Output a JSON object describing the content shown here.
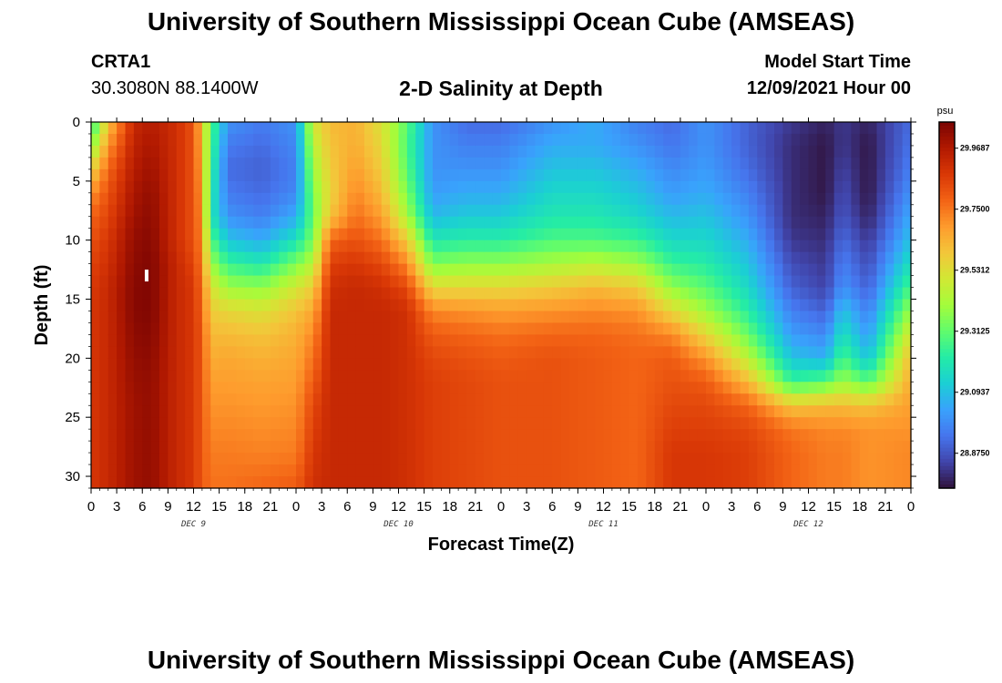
{
  "header": {
    "title": "University of Southern Mississippi Ocean Cube (AMSEAS)",
    "station_id": "CRTA1",
    "station_coords": "30.3080N  88.1400W",
    "subtitle": "2-D Salinity at Depth",
    "model_start_label": "Model Start Time",
    "model_start_value": "12/09/2021 Hour 00"
  },
  "footer": {
    "title": "University of Southern Mississippi Ocean Cube (AMSEAS)"
  },
  "colors": {
    "colormap": [
      "#30123b",
      "#4145ab",
      "#4675ed",
      "#39a2fc",
      "#1bcfd4",
      "#24eca6",
      "#61fc6c",
      "#a4fc3b",
      "#d1e834",
      "#f3c63a",
      "#fe9b2d",
      "#f36315",
      "#d93806",
      "#b11901",
      "#7a0402"
    ]
  },
  "chart_data": {
    "type": "heatmap",
    "title": "2-D Salinity at Depth",
    "xlabel": "Forecast Time(Z)",
    "ylabel": "Depth (ft)",
    "x_range_hours": [
      0,
      96
    ],
    "x_tick_hours": [
      0,
      3,
      6,
      9,
      12,
      15,
      18,
      21,
      24,
      27,
      30,
      33,
      36,
      39,
      42,
      45,
      48,
      51,
      54,
      57,
      60,
      63,
      66,
      69,
      72,
      75,
      78,
      81,
      84,
      87,
      90,
      93,
      96
    ],
    "x_tick_labels": [
      "0",
      "3",
      "6",
      "9",
      "12",
      "15",
      "18",
      "21",
      "0",
      "3",
      "6",
      "9",
      "12",
      "15",
      "18",
      "21",
      "0",
      "3",
      "6",
      "9",
      "12",
      "15",
      "18",
      "21",
      "0",
      "3",
      "6",
      "9",
      "12",
      "15",
      "18",
      "21",
      "0"
    ],
    "day_labels": [
      {
        "text": "DEC 9",
        "hour": 12
      },
      {
        "text": "DEC 10",
        "hour": 36
      },
      {
        "text": "DEC 11",
        "hour": 60
      },
      {
        "text": "DEC 12",
        "hour": 84
      }
    ],
    "y_range_ft": [
      0,
      31
    ],
    "y_ticks": [
      0,
      5,
      10,
      15,
      20,
      25,
      30
    ],
    "y_tick_labels": [
      "0",
      "5",
      "10",
      "15",
      "20",
      "25",
      "30"
    ],
    "colorbar": {
      "unit": "psu",
      "range": [
        28.75,
        30.0625
      ],
      "ticks": [
        29.9687,
        29.75,
        29.5312,
        29.3125,
        29.0937,
        28.875
      ],
      "tick_labels": [
        "29.9687",
        "29.7500",
        "29.5312",
        "29.3125",
        "29.0937",
        "28.8750"
      ]
    },
    "profile_levels_ft": [
      0,
      2,
      4,
      6,
      8,
      10,
      12,
      14,
      16,
      18,
      20,
      22,
      24,
      26,
      28,
      31
    ],
    "profiles": [
      {
        "hour": 0,
        "psu": [
          29.2,
          29.35,
          29.55,
          29.7,
          29.78,
          29.82,
          29.85,
          29.87,
          29.88,
          29.88,
          29.88,
          29.88,
          29.88,
          29.88,
          29.88,
          29.88
        ]
      },
      {
        "hour": 2,
        "psu": [
          29.6,
          29.7,
          29.78,
          29.82,
          29.85,
          29.88,
          29.9,
          29.92,
          29.92,
          29.92,
          29.92,
          29.92,
          29.92,
          29.92,
          29.92,
          29.92
        ]
      },
      {
        "hour": 5,
        "psu": [
          29.92,
          29.94,
          29.96,
          29.98,
          30.0,
          30.02,
          30.03,
          30.04,
          30.04,
          30.03,
          30.02,
          30.01,
          30.0,
          30.0,
          30.0,
          30.0
        ]
      },
      {
        "hour": 7,
        "psu": [
          29.96,
          29.98,
          30.0,
          30.02,
          30.03,
          30.04,
          30.05,
          30.05,
          30.05,
          30.04,
          30.03,
          30.02,
          30.02,
          30.02,
          30.02,
          30.02
        ]
      },
      {
        "hour": 10,
        "psu": [
          29.9,
          29.9,
          29.9,
          29.9,
          29.9,
          29.9,
          29.92,
          29.92,
          29.92,
          29.92,
          29.92,
          29.92,
          29.92,
          29.92,
          29.92,
          29.92
        ]
      },
      {
        "hour": 12,
        "psu": [
          29.82,
          29.82,
          29.82,
          29.82,
          29.82,
          29.82,
          29.85,
          29.88,
          29.88,
          29.88,
          29.88,
          29.88,
          29.88,
          29.88,
          29.88,
          29.88
        ]
      },
      {
        "hour": 13,
        "psu": [
          29.6,
          29.62,
          29.65,
          29.68,
          29.7,
          29.72,
          29.74,
          29.76,
          29.78,
          29.8,
          29.8,
          29.8,
          29.8,
          29.8,
          29.8,
          29.8
        ]
      },
      {
        "hour": 14,
        "psu": [
          29.3,
          29.28,
          29.25,
          29.22,
          29.2,
          29.3,
          29.4,
          29.52,
          29.58,
          29.62,
          29.65,
          29.68,
          29.7,
          29.72,
          29.74,
          29.76
        ]
      },
      {
        "hour": 16,
        "psu": [
          29.0,
          28.95,
          28.92,
          28.95,
          29.0,
          29.1,
          29.25,
          29.4,
          29.55,
          29.62,
          29.66,
          29.68,
          29.7,
          29.72,
          29.74,
          29.76
        ]
      },
      {
        "hour": 20,
        "psu": [
          28.95,
          28.92,
          28.9,
          28.92,
          28.96,
          29.05,
          29.2,
          29.38,
          29.52,
          29.6,
          29.64,
          29.67,
          29.69,
          29.71,
          29.73,
          29.78
        ]
      },
      {
        "hour": 24,
        "psu": [
          29.0,
          28.98,
          28.96,
          28.98,
          29.05,
          29.18,
          29.35,
          29.5,
          29.6,
          29.64,
          29.66,
          29.68,
          29.7,
          29.72,
          29.74,
          29.8
        ]
      },
      {
        "hour": 26,
        "psu": [
          29.5,
          29.45,
          29.4,
          29.35,
          29.32,
          29.35,
          29.45,
          29.58,
          29.66,
          29.72,
          29.76,
          29.8,
          29.84,
          29.86,
          29.88,
          29.9
        ]
      },
      {
        "hour": 28,
        "psu": [
          29.62,
          29.6,
          29.58,
          29.56,
          29.6,
          29.78,
          29.86,
          29.9,
          29.92,
          29.92,
          29.92,
          29.92,
          29.92,
          29.92,
          29.92,
          29.92
        ]
      },
      {
        "hour": 31,
        "psu": [
          29.64,
          29.65,
          29.68,
          29.72,
          29.76,
          29.82,
          29.88,
          29.92,
          29.92,
          29.92,
          29.92,
          29.92,
          29.92,
          29.92,
          29.92,
          29.92
        ]
      },
      {
        "hour": 34,
        "psu": [
          29.52,
          29.55,
          29.58,
          29.62,
          29.68,
          29.76,
          29.84,
          29.9,
          29.92,
          29.92,
          29.92,
          29.92,
          29.92,
          29.92,
          29.92,
          29.92
        ]
      },
      {
        "hour": 37,
        "psu": [
          29.3,
          29.28,
          29.3,
          29.35,
          29.42,
          29.58,
          29.72,
          29.84,
          29.9,
          29.9,
          29.9,
          29.9,
          29.9,
          29.9,
          29.9,
          29.9
        ]
      },
      {
        "hour": 40,
        "psu": [
          29.0,
          29.0,
          29.0,
          29.02,
          29.08,
          29.2,
          29.35,
          29.55,
          29.72,
          29.8,
          29.84,
          29.86,
          29.86,
          29.86,
          29.86,
          29.86
        ]
      },
      {
        "hour": 44,
        "psu": [
          28.92,
          28.96,
          29.0,
          29.05,
          29.12,
          29.22,
          29.38,
          29.55,
          29.7,
          29.78,
          29.82,
          29.84,
          29.84,
          29.84,
          29.84,
          29.84
        ]
      },
      {
        "hour": 48,
        "psu": [
          28.92,
          28.96,
          29.0,
          29.05,
          29.12,
          29.22,
          29.38,
          29.55,
          29.68,
          29.76,
          29.8,
          29.82,
          29.82,
          29.82,
          29.82,
          29.82
        ]
      },
      {
        "hour": 54,
        "psu": [
          29.0,
          29.05,
          29.1,
          29.15,
          29.2,
          29.28,
          29.42,
          29.58,
          29.7,
          29.78,
          29.82,
          29.82,
          29.82,
          29.82,
          29.82,
          29.82
        ]
      },
      {
        "hour": 59,
        "psu": [
          29.05,
          29.05,
          29.1,
          29.15,
          29.2,
          29.28,
          29.45,
          29.62,
          29.72,
          29.78,
          29.8,
          29.8,
          29.8,
          29.8,
          29.8,
          29.8
        ]
      },
      {
        "hour": 64,
        "psu": [
          28.96,
          29.0,
          29.05,
          29.1,
          29.15,
          29.25,
          29.4,
          29.58,
          29.7,
          29.76,
          29.78,
          29.78,
          29.78,
          29.78,
          29.78,
          29.78
        ]
      },
      {
        "hour": 68,
        "psu": [
          28.92,
          28.94,
          28.98,
          29.02,
          29.08,
          29.15,
          29.25,
          29.38,
          29.55,
          29.72,
          29.8,
          29.82,
          29.84,
          29.86,
          29.88,
          29.88
        ]
      },
      {
        "hour": 72,
        "psu": [
          29.0,
          29.0,
          29.02,
          29.05,
          29.1,
          29.15,
          29.22,
          29.3,
          29.4,
          29.55,
          29.7,
          29.8,
          29.84,
          29.86,
          29.88,
          29.88
        ]
      },
      {
        "hour": 77,
        "psu": [
          28.9,
          28.9,
          28.92,
          28.96,
          29.0,
          29.05,
          29.1,
          29.15,
          29.22,
          29.32,
          29.45,
          29.62,
          29.78,
          29.84,
          29.86,
          29.86
        ]
      },
      {
        "hour": 82,
        "psu": [
          28.82,
          28.8,
          28.8,
          28.8,
          28.8,
          28.82,
          28.86,
          28.9,
          28.96,
          29.02,
          29.1,
          29.25,
          29.6,
          29.75,
          29.78,
          29.78
        ]
      },
      {
        "hour": 86,
        "psu": [
          28.78,
          28.76,
          28.76,
          28.76,
          28.78,
          28.8,
          28.82,
          28.84,
          28.9,
          28.98,
          29.06,
          29.3,
          29.62,
          29.72,
          29.74,
          29.74
        ]
      },
      {
        "hour": 88,
        "psu": [
          28.82,
          28.82,
          28.84,
          28.86,
          28.88,
          28.92,
          28.96,
          29.0,
          29.1,
          29.18,
          29.28,
          29.4,
          29.62,
          29.72,
          29.74,
          29.74
        ]
      },
      {
        "hour": 91,
        "psu": [
          28.78,
          28.76,
          28.76,
          28.76,
          28.78,
          28.82,
          28.86,
          28.9,
          28.96,
          29.02,
          29.1,
          29.3,
          29.6,
          29.7,
          29.7,
          29.7
        ]
      },
      {
        "hour": 96,
        "psu": [
          28.92,
          28.94,
          28.96,
          29.0,
          29.05,
          29.1,
          29.18,
          29.28,
          29.4,
          29.52,
          29.62,
          29.66,
          29.68,
          29.7,
          29.72,
          29.72
        ]
      }
    ],
    "marker": {
      "hour": 6.5,
      "depth_ft": [
        12.5,
        13.5
      ]
    }
  }
}
